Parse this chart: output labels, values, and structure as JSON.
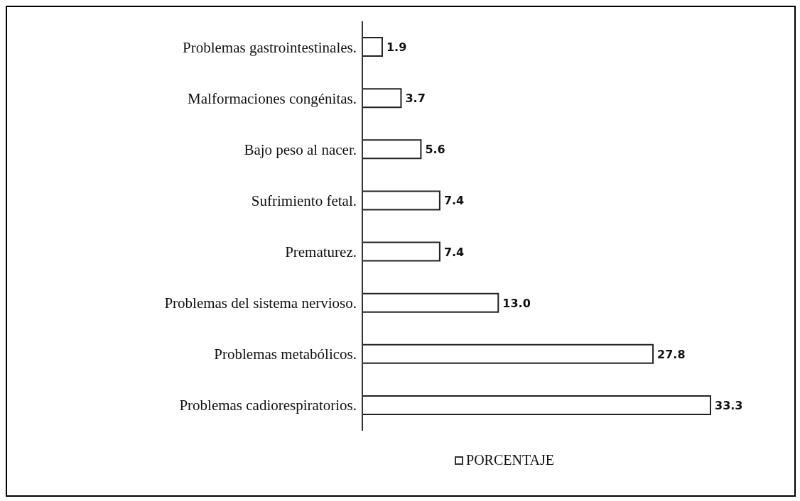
{
  "chart_data": {
    "type": "bar",
    "orientation": "horizontal",
    "categories": [
      "Problemas gastrointestinales.",
      "Malformaciones congénitas.",
      "Bajo peso al nacer.",
      "Sufrimiento fetal.",
      "Prematurez.",
      "Problemas del sistema nervioso.",
      "Problemas metabólicos.",
      "Problemas cadiorespiratorios."
    ],
    "series": [
      {
        "name": "PORCENTAJE",
        "color": "#ffffff",
        "values": [
          1.9,
          3.7,
          5.6,
          7.4,
          7.4,
          13.0,
          27.8,
          33.3
        ],
        "value_labels": [
          "1.9",
          "3.7",
          "5.6",
          "7.4",
          "7.4",
          "13.0",
          "27.8",
          "33.3"
        ]
      }
    ],
    "legend": "bottom"
  }
}
